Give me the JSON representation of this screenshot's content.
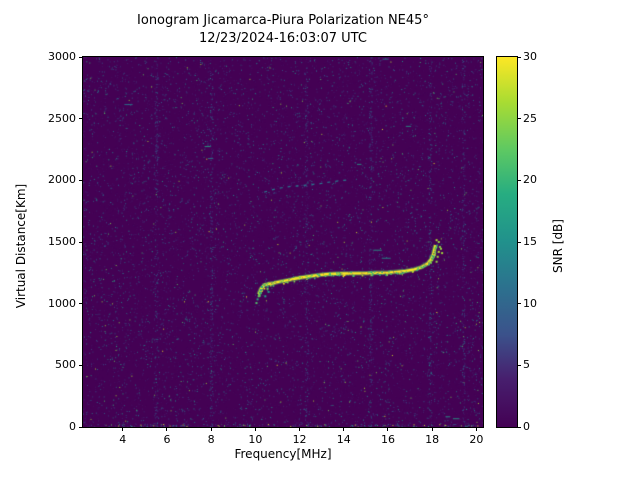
{
  "chart_data": {
    "type": "heatmap",
    "title": "Ionogram Jicamarca-Piura Polarization NE45°",
    "subtitle": "12/23/2024-16:03:07 UTC",
    "xlabel": "Frequency[MHz]",
    "ylabel": "Virtual Distance[Km]",
    "xlim": [
      2.2,
      20.3
    ],
    "ylim": [
      0,
      3000
    ],
    "xticks": [
      4,
      6,
      8,
      10,
      12,
      14,
      16,
      18,
      20
    ],
    "yticks": [
      0,
      500,
      1000,
      1500,
      2000,
      2500,
      3000
    ],
    "grid": false,
    "colorbar": {
      "label": "SNR [dB]",
      "min": 0,
      "max": 30,
      "ticks": [
        0,
        5,
        10,
        15,
        20,
        25,
        30
      ],
      "colormap": "viridis"
    },
    "colormap_stops": [
      [
        0,
        "#440154"
      ],
      [
        0.13,
        "#471f6e"
      ],
      [
        0.25,
        "#3b528b"
      ],
      [
        0.38,
        "#2c728e"
      ],
      [
        0.5,
        "#21918c"
      ],
      [
        0.63,
        "#27ad81"
      ],
      [
        0.75,
        "#5ec962"
      ],
      [
        0.88,
        "#aadc32"
      ],
      [
        1,
        "#fde725"
      ]
    ],
    "background_snr_db": 0,
    "noise": {
      "seed": 7,
      "dots": 12000,
      "bright_dots": 320,
      "rfi_columns_mhz": [
        5.5,
        8.0,
        12.3,
        15.2,
        17.9,
        19.4
      ]
    },
    "series": [
      {
        "name": "main-echo-trace",
        "snr_db": 30,
        "points_mhz_km": [
          [
            10.15,
            1075
          ],
          [
            10.25,
            1120
          ],
          [
            10.4,
            1150
          ],
          [
            10.6,
            1160
          ],
          [
            10.8,
            1165
          ],
          [
            11.0,
            1175
          ],
          [
            11.3,
            1185
          ],
          [
            11.6,
            1195
          ],
          [
            12.0,
            1210
          ],
          [
            12.4,
            1220
          ],
          [
            12.8,
            1230
          ],
          [
            13.2,
            1238
          ],
          [
            13.6,
            1242
          ],
          [
            14.0,
            1245
          ],
          [
            14.5,
            1246
          ],
          [
            15.0,
            1247
          ],
          [
            15.5,
            1250
          ],
          [
            16.0,
            1252
          ],
          [
            16.4,
            1258
          ],
          [
            16.8,
            1265
          ],
          [
            17.2,
            1278
          ],
          [
            17.5,
            1295
          ],
          [
            17.8,
            1325
          ],
          [
            17.95,
            1360
          ],
          [
            18.05,
            1400
          ],
          [
            18.1,
            1440
          ],
          [
            18.15,
            1475
          ]
        ]
      },
      {
        "name": "cusp-scatter",
        "snr_db": 26,
        "points_mhz_km": [
          [
            18.25,
            1380
          ],
          [
            18.3,
            1420
          ],
          [
            18.35,
            1460
          ],
          [
            18.3,
            1500
          ],
          [
            18.2,
            1515
          ],
          [
            18.4,
            1445
          ],
          [
            18.45,
            1410
          ],
          [
            18.2,
            1340
          ]
        ]
      },
      {
        "name": "leading-edge-scatter",
        "snr_db": 15,
        "points_mhz_km": [
          [
            10.05,
            1005
          ],
          [
            10.1,
            1035
          ],
          [
            10.15,
            1060
          ],
          [
            10.2,
            1090
          ],
          [
            10.25,
            1110
          ],
          [
            10.3,
            1135
          ],
          [
            10.45,
            1060
          ],
          [
            10.4,
            1150
          ],
          [
            10.55,
            1120
          ],
          [
            10.6,
            1095
          ]
        ]
      },
      {
        "name": "second-hop-trace",
        "snr_db": 12,
        "points_mhz_km": [
          [
            10.4,
            1905
          ],
          [
            10.8,
            1925
          ],
          [
            11.2,
            1940
          ],
          [
            11.6,
            1950
          ],
          [
            12.0,
            1955
          ],
          [
            12.5,
            1965
          ],
          [
            13.0,
            1975
          ],
          [
            13.5,
            1990
          ],
          [
            14.0,
            2000
          ],
          [
            14.25,
            2005
          ]
        ]
      }
    ]
  }
}
